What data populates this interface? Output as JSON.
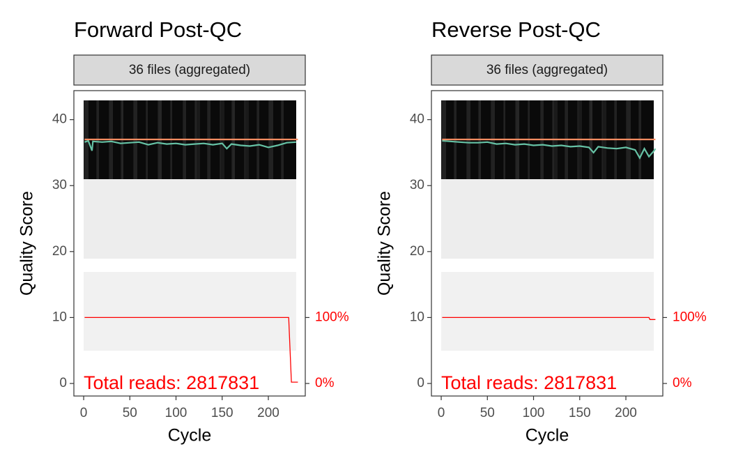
{
  "chart_data": [
    {
      "type": "line",
      "title": "Forward Post-QC",
      "strip": "36 files (aggregated)",
      "x_label": "Cycle",
      "y_label": "Quality Score",
      "annotation": "Total reads: 2817831",
      "xlim": [
        -10.6,
        240
      ],
      "xticks": [
        0,
        50,
        100,
        150,
        200
      ],
      "ylim": [
        -1.9,
        44.4
      ],
      "yticks": [
        0,
        10,
        20,
        30,
        40
      ],
      "y2lim": [
        -19,
        444
      ],
      "y2ticks": [
        {
          "value": 100,
          "label": "100%"
        },
        {
          "value": 0,
          "label": "0%"
        }
      ],
      "series": [
        {
          "color": "#66C2A5",
          "x": [
            1,
            5,
            9,
            10,
            20,
            30,
            40,
            50,
            60,
            70,
            80,
            90,
            100,
            110,
            120,
            130,
            140,
            150,
            155,
            160,
            170,
            180,
            190,
            200,
            210,
            220,
            230
          ],
          "values": [
            36.6,
            36.8,
            35.3,
            36.7,
            36.6,
            36.7,
            36.4,
            36.5,
            36.6,
            36.2,
            36.5,
            36.3,
            36.4,
            36.2,
            36.3,
            36.4,
            36.2,
            36.4,
            35.6,
            36.3,
            36.1,
            36.0,
            36.2,
            35.8,
            36.1,
            36.5,
            36.6
          ]
        },
        {
          "color": "#FC8D62",
          "x": [
            1,
            232
          ],
          "values": [
            37,
            37
          ]
        },
        {
          "color": "#FF0000",
          "axis": "y2",
          "x": [
            1,
            222,
            225,
            232
          ],
          "values": [
            100,
            100,
            2,
            2
          ]
        }
      ]
    },
    {
      "type": "line",
      "title": "Reverse Post-QC",
      "strip": "36 files (aggregated)",
      "x_label": "Cycle",
      "y_label": "Quality Score",
      "annotation": "Total reads: 2817831",
      "xlim": [
        -10.6,
        240
      ],
      "xticks": [
        0,
        50,
        100,
        150,
        200
      ],
      "ylim": [
        -1.9,
        44.4
      ],
      "yticks": [
        0,
        10,
        20,
        30,
        40
      ],
      "y2lim": [
        -19,
        444
      ],
      "y2ticks": [
        {
          "value": 100,
          "label": "100%"
        },
        {
          "value": 0,
          "label": "0%"
        }
      ],
      "series": [
        {
          "color": "#66C2A5",
          "x": [
            1,
            10,
            20,
            30,
            40,
            50,
            60,
            70,
            80,
            90,
            100,
            110,
            120,
            130,
            140,
            150,
            160,
            165,
            170,
            180,
            190,
            200,
            210,
            215,
            220,
            225,
            230,
            232
          ],
          "values": [
            36.8,
            36.7,
            36.6,
            36.5,
            36.5,
            36.6,
            36.3,
            36.4,
            36.2,
            36.3,
            36.1,
            36.2,
            36.0,
            36.1,
            35.9,
            36.0,
            35.8,
            35.0,
            35.9,
            35.7,
            35.6,
            35.8,
            35.4,
            34.2,
            35.6,
            34.4,
            35.2,
            35.6
          ]
        },
        {
          "color": "#FC8D62",
          "x": [
            1,
            232
          ],
          "values": [
            37,
            37
          ]
        },
        {
          "color": "#FF0000",
          "axis": "y2",
          "x": [
            1,
            225,
            226,
            232
          ],
          "values": [
            100,
            100,
            97,
            97
          ]
        }
      ]
    }
  ]
}
